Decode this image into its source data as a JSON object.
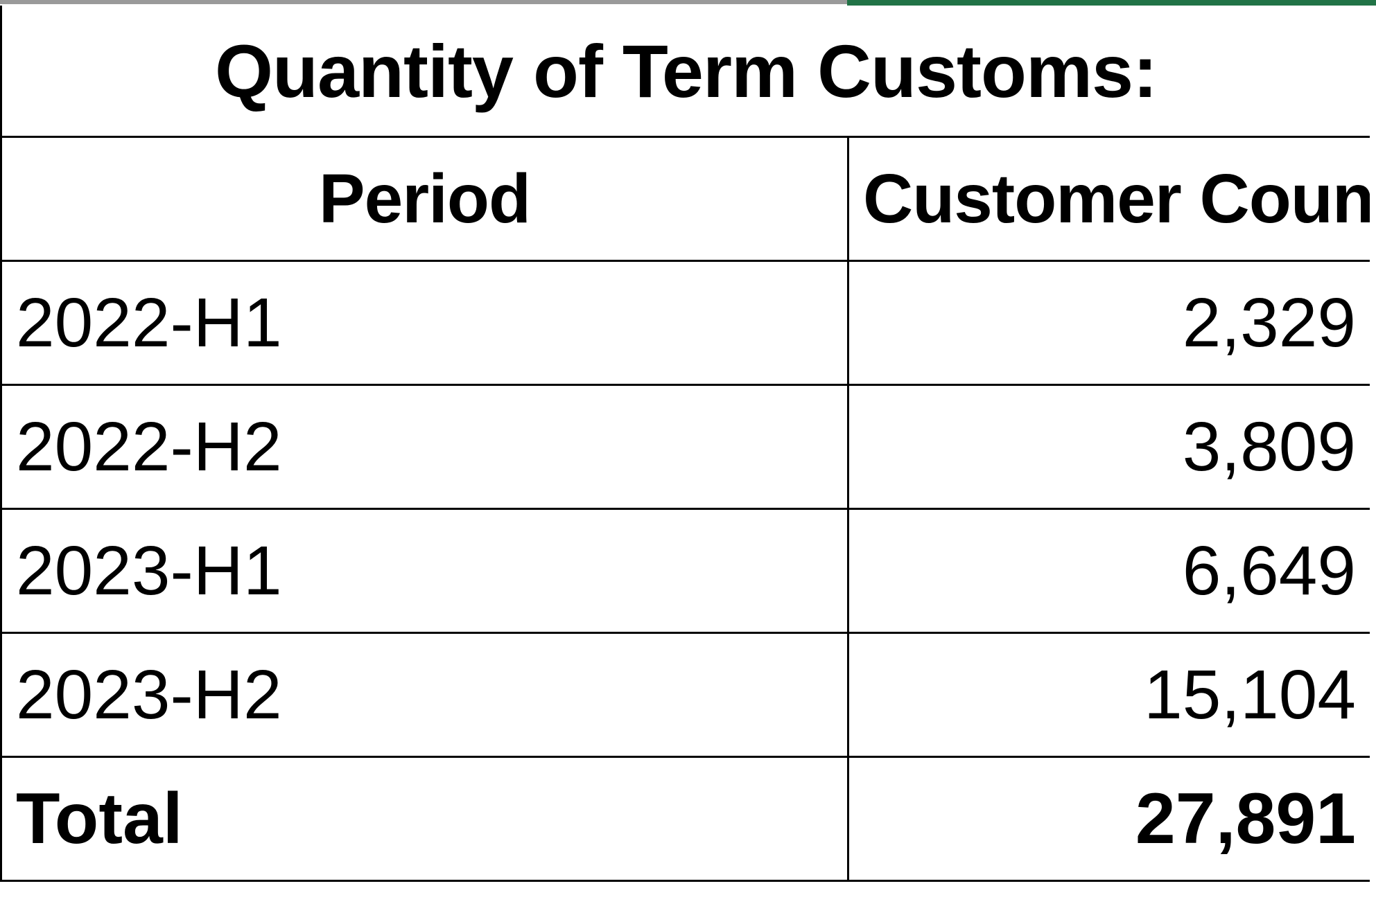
{
  "table": {
    "title": "Quantity of Term Customs:",
    "headers": [
      "Period",
      "Customer Count"
    ],
    "rows": [
      {
        "period": "2022-H1",
        "count": "2,329"
      },
      {
        "period": "2022-H2",
        "count": "3,809"
      },
      {
        "period": "2023-H1",
        "count": "6,649"
      },
      {
        "period": "2023-H2",
        "count": "15,104"
      }
    ],
    "total": {
      "label": "Total",
      "count": "27,891"
    }
  },
  "colors": {
    "gridline": "#000000",
    "selection_accent": "#217346",
    "selection_gray": "#9a9a9a",
    "background": "#ffffff"
  }
}
